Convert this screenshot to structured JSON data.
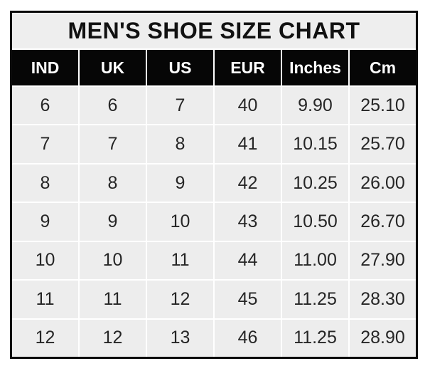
{
  "chart_data": {
    "type": "table",
    "title": "MEN'S SHOE SIZE CHART",
    "columns": [
      "IND",
      "UK",
      "US",
      "EUR",
      "Inches",
      "Cm"
    ],
    "rows": [
      [
        "6",
        "6",
        "7",
        "40",
        "9.90",
        "25.10"
      ],
      [
        "7",
        "7",
        "8",
        "41",
        "10.15",
        "25.70"
      ],
      [
        "8",
        "8",
        "9",
        "42",
        "10.25",
        "26.00"
      ],
      [
        "9",
        "9",
        "10",
        "43",
        "10.50",
        "26.70"
      ],
      [
        "10",
        "10",
        "11",
        "44",
        "11.00",
        "27.90"
      ],
      [
        "11",
        "11",
        "12",
        "45",
        "11.25",
        "28.30"
      ],
      [
        "12",
        "12",
        "13",
        "46",
        "11.25",
        "28.90"
      ]
    ],
    "layout": {
      "legend": "none",
      "grid": "white separator lines between cells",
      "header_position": "top row below title"
    },
    "colors": {
      "page_background": "#ffffff",
      "outer_border": "#0b0b0b",
      "title_background": "#eeeeee",
      "title_text": "#111111",
      "header_background": "#060606",
      "header_text": "#ffffff",
      "cell_background": "#ededed",
      "cell_text": "#262626",
      "grid_line": "#ffffff"
    }
  }
}
